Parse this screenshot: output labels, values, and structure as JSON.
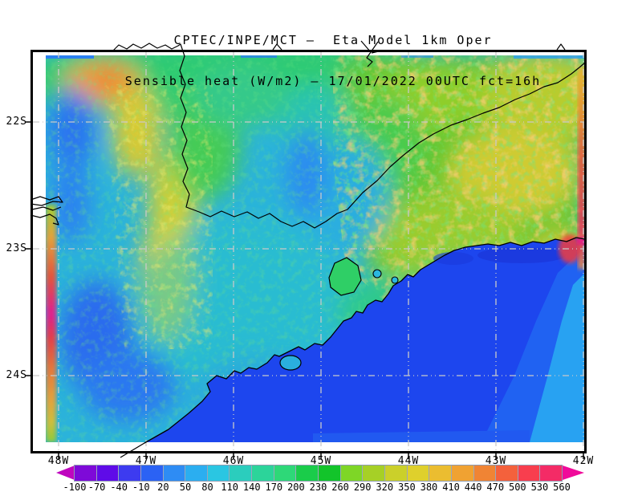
{
  "title": {
    "line1": "CPTEC/INPE/MCT —  Eta Model 1km Oper",
    "line2": "Sensible heat (W/m2) — 17/01/2022 00UTC fct=16h"
  },
  "map": {
    "lat_labels": [
      "22S",
      "23S",
      "24S"
    ],
    "lon_labels": [
      "48W",
      "47W",
      "46W",
      "45W",
      "44W",
      "43W",
      "42W"
    ]
  },
  "colorbar": {
    "tick_labels": [
      "-100",
      "-70",
      "-40",
      "-10",
      "20",
      "50",
      "80",
      "110",
      "140",
      "170",
      "200",
      "230",
      "260",
      "290",
      "320",
      "350",
      "380",
      "410",
      "440",
      "470",
      "500",
      "530",
      "560"
    ],
    "segment_colors": [
      "#7E0AD8",
      "#5F0BE8",
      "#3D3BF0",
      "#2B62F4",
      "#2E8CF4",
      "#2BAEF0",
      "#2AC6E2",
      "#2BCDBD",
      "#2CD49A",
      "#2ED878",
      "#1ACC4A",
      "#12C42A",
      "#7ED626",
      "#A6D026",
      "#CBD02A",
      "#DFD02C",
      "#EBBD30",
      "#F0A232",
      "#F08434",
      "#F4613C",
      "#F83E4E",
      "#F42B66"
    ],
    "arrow_left_color": "#BF06BF",
    "arrow_right_color": "#F00A9A"
  },
  "key_colors": {
    "ocean_blue": "#1D46EE",
    "ocean_light_band": "#2062F2",
    "ocean_cyan_band": "#28A2F2",
    "land_base_cyan": "#2BB3DA",
    "land_green": "#44C838",
    "land_yellow": "#D6D136",
    "land_orange": "#F0A232",
    "contour_black": "#000000",
    "gridline_gray": "#C9C9C9"
  },
  "chart_data": {
    "type": "heatmap",
    "title": "CPTEC/INPE/MCT —  Eta Model 1km Oper",
    "subtitle": "Sensible heat (W/m2) — 17/01/2022 00UTC fct=16h",
    "center": "CPTEC/INPE/MCT",
    "model": "Eta Model 1km Oper",
    "variable": "Sensible heat",
    "units": "W/m2",
    "init_time": "17/01/2022 00UTC",
    "forecast": "fct=16h",
    "xlabel_ticks": [
      "48W",
      "47W",
      "46W",
      "45W",
      "44W",
      "43W",
      "42W"
    ],
    "ylabel_ticks": [
      "22S",
      "23S",
      "24S"
    ],
    "colorbar_values": [
      -100,
      -70,
      -40,
      -10,
      20,
      50,
      80,
      110,
      140,
      170,
      200,
      230,
      260,
      290,
      320,
      350,
      380,
      410,
      440,
      470,
      500,
      530,
      560
    ],
    "colorbar_interval": 30,
    "colorbar_colors": [
      "#7E0AD8",
      "#5F0BE8",
      "#3D3BF0",
      "#2B62F4",
      "#2E8CF4",
      "#2BAEF0",
      "#2AC6E2",
      "#2BCDBD",
      "#2CD49A",
      "#2ED878",
      "#1ACC4A",
      "#12C42A",
      "#7ED626",
      "#A6D026",
      "#CBD02A",
      "#DFD02C",
      "#EBBD30",
      "#F0A232",
      "#F08434",
      "#F4613C",
      "#F83E4E",
      "#F42B66"
    ],
    "legend_position": "bottom",
    "grid": "dotted lat/lon grid every 1 degree",
    "field_summary": [
      {
        "region": "Atlantic ocean southeast of the coastline",
        "approx_value_wm2": "-10 to 80",
        "appearance": "uniform royal blue with lighter blue and cyan bands offshore to the east"
      },
      {
        "region": "northeast interior (upper-right, beyond SP/MG border)",
        "approx_value_wm2": "170 to 440",
        "appearance": "green-yellow mottle with scattered orange patches"
      },
      {
        "region": "west / central interior (Sao Paulo)",
        "approx_value_wm2": "50 to 170",
        "appearance": "cyan-teal with blue pockets and a yellow 260-350 band near 47W"
      },
      {
        "region": "top-left corner patch",
        "approx_value_wm2": "350 to 470",
        "appearance": "orange blob with red core"
      },
      {
        "region": "western domain-edge artifact strip at 48W",
        "approx_value_wm2": "260 to 560",
        "appearance": "narrow yellow-orange-red-magenta vertical streak"
      },
      {
        "region": "eastern domain edge near 42W (Rio coast)",
        "approx_value_wm2": "350 to 560",
        "appearance": "orange-red vertical streak and red blobs"
      }
    ]
  }
}
